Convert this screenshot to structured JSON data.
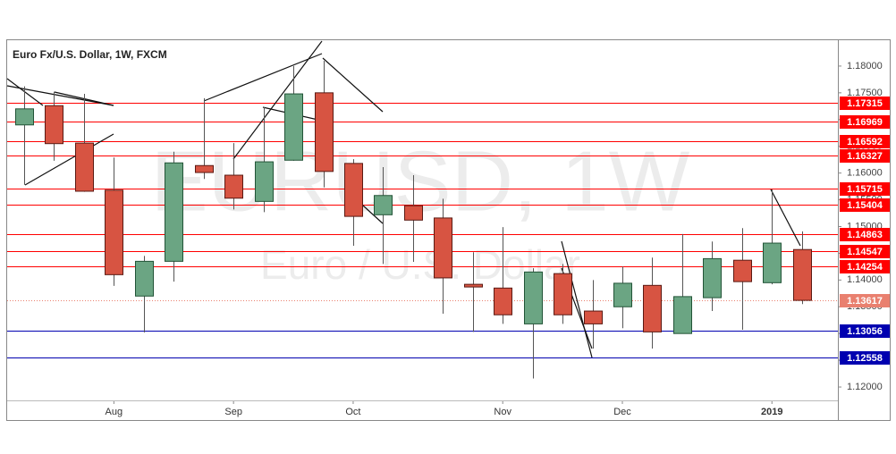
{
  "chart_data": {
    "type": "candlestick",
    "title": "Euro Fx/U.S. Dollar, 1W, FXCM",
    "watermark": "EURUSD, 1W",
    "watermark_subtitle": "Euro / U.S. Dollar",
    "categories": [
      null,
      null,
      null,
      "Aug",
      null,
      null,
      null,
      "Sep",
      null,
      null,
      null,
      "Oct",
      null,
      null,
      null,
      null,
      "Nov",
      null,
      null,
      null,
      "Dec",
      null,
      null,
      null,
      null,
      "2019",
      null
    ],
    "open": [
      1.169,
      1.1726,
      1.1656,
      1.1568,
      1.137,
      1.1435,
      1.1614,
      1.1596,
      1.1547,
      1.1624,
      1.175,
      1.1618,
      1.1522,
      1.1539,
      1.1516,
      1.1392,
      1.1385,
      1.1318,
      1.1412,
      1.1342,
      1.135,
      1.139,
      1.13,
      1.1367,
      1.1437,
      1.1395,
      1.1457
    ],
    "high": [
      1.1762,
      1.1752,
      1.1748,
      1.1629,
      1.1445,
      1.164,
      1.174,
      1.1656,
      1.1723,
      1.18,
      1.181,
      1.1626,
      1.1611,
      1.1596,
      1.1552,
      1.1452,
      1.1499,
      1.1422,
      1.143,
      1.14,
      1.1425,
      1.1442,
      1.1486,
      1.1472,
      1.1497,
      1.1569,
      1.1491
    ],
    "low": [
      1.1578,
      1.1623,
      1.1565,
      1.1389,
      1.1302,
      1.1397,
      1.1589,
      1.1532,
      1.1527,
      1.1623,
      1.1573,
      1.1464,
      1.143,
      1.1434,
      1.1337,
      1.1303,
      1.1318,
      1.1216,
      1.1318,
      1.1272,
      1.131,
      1.1272,
      1.13,
      1.1342,
      1.1307,
      1.1392,
      1.1355
    ],
    "close": [
      1.172,
      1.1655,
      1.1566,
      1.141,
      1.1435,
      1.1619,
      1.1601,
      1.1553,
      1.1621,
      1.1748,
      1.1603,
      1.1519,
      1.1558,
      1.1512,
      1.1404,
      1.1387,
      1.1335,
      1.1415,
      1.1335,
      1.1318,
      1.1394,
      1.1303,
      1.1369,
      1.144,
      1.1397,
      1.1469,
      1.1362
    ],
    "up_color": "#6ba583",
    "down_color": "#d75442",
    "ylim": [
      1.1175,
      1.185
    ],
    "yticks": [
      {
        "value": 1.12,
        "label": "1.12000"
      },
      {
        "value": 1.125,
        "label": "1.12500"
      },
      {
        "value": 1.13,
        "label": "1.13000"
      },
      {
        "value": 1.135,
        "label": "1.13500"
      },
      {
        "value": 1.14,
        "label": "1.14000"
      },
      {
        "value": 1.145,
        "label": "1.14500"
      },
      {
        "value": 1.15,
        "label": "1.15000"
      },
      {
        "value": 1.155,
        "label": "1.15500"
      },
      {
        "value": 1.16,
        "label": "1.16000"
      },
      {
        "value": 1.165,
        "label": "1.16500"
      },
      {
        "value": 1.17,
        "label": "1.17000"
      },
      {
        "value": 1.175,
        "label": "1.17500"
      },
      {
        "value": 1.18,
        "label": "1.18000"
      }
    ],
    "levels": [
      {
        "value": 1.17315,
        "color": "#ff0000",
        "style": "solid"
      },
      {
        "value": 1.16969,
        "color": "#ff0000",
        "style": "solid"
      },
      {
        "value": 1.16592,
        "color": "#ff0000",
        "style": "solid"
      },
      {
        "value": 1.16327,
        "color": "#ff0000",
        "style": "solid"
      },
      {
        "value": 1.15715,
        "color": "#ff0000",
        "style": "solid"
      },
      {
        "value": 1.15404,
        "color": "#ff0000",
        "style": "solid"
      },
      {
        "value": 1.14863,
        "color": "#ff0000",
        "style": "solid"
      },
      {
        "value": 1.14547,
        "color": "#ff0000",
        "style": "solid"
      },
      {
        "value": 1.14254,
        "color": "#ff0000",
        "style": "solid"
      },
      {
        "value": 1.13617,
        "color": "#e9806f",
        "style": "dotted"
      },
      {
        "value": 1.13056,
        "color": "#0000b0",
        "style": "solid"
      },
      {
        "value": 1.12558,
        "color": "#0000b0",
        "style": "solid"
      }
    ]
  }
}
